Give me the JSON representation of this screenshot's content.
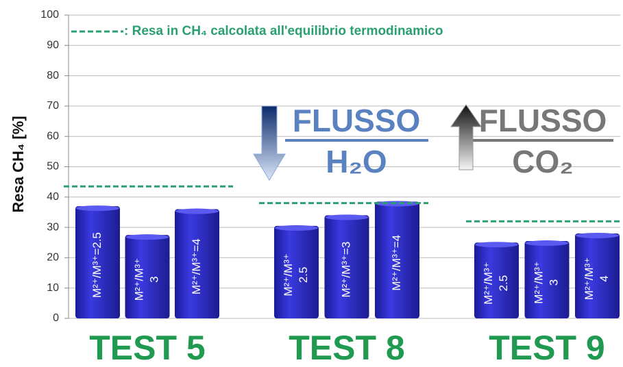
{
  "chart_data": {
    "type": "bar",
    "y_label": "Resa CH₄ [%]",
    "legend_text": ": Resa in CH₄ calcolata all'equilibrio termodinamico",
    "ylim": [
      0,
      100
    ],
    "yticks": [
      0,
      10,
      20,
      30,
      40,
      50,
      60,
      70,
      80,
      90,
      100
    ],
    "grid": true,
    "color": "#2b2bc8",
    "equilibrium_color": "#2aa070",
    "groups": [
      {
        "label": "TEST 5",
        "values": [
          37,
          27.5,
          36
        ],
        "bar_labels": [
          [
            "M²⁺/M³⁺=2.5"
          ],
          [
            "M²⁺/M³⁺",
            "3"
          ],
          [
            "M²⁺/M³⁺=4"
          ]
        ],
        "equilibrium": 43.5
      },
      {
        "label": "TEST 8",
        "values": [
          30.5,
          34,
          38.5
        ],
        "bar_labels": [
          [
            "M²⁺/M³⁺",
            "2.5"
          ],
          [
            "M²⁺/M³⁺=3"
          ],
          [
            "M²⁺/M³⁺=4"
          ]
        ],
        "equilibrium": 38
      },
      {
        "label": "TEST 9",
        "values": [
          25,
          25.5,
          28
        ],
        "bar_labels": [
          [
            "M²⁺/M³⁺",
            "2.5"
          ],
          [
            "M²⁺/M³⁺",
            "3"
          ],
          [
            "M²⁺/M³⁺",
            "4"
          ]
        ],
        "equilibrium": 32
      }
    ],
    "annotations": {
      "h2o_flow": "FLUSSO",
      "h2o": "H₂O",
      "co2_flow": "FLUSSO",
      "co2": "CO₂"
    }
  }
}
